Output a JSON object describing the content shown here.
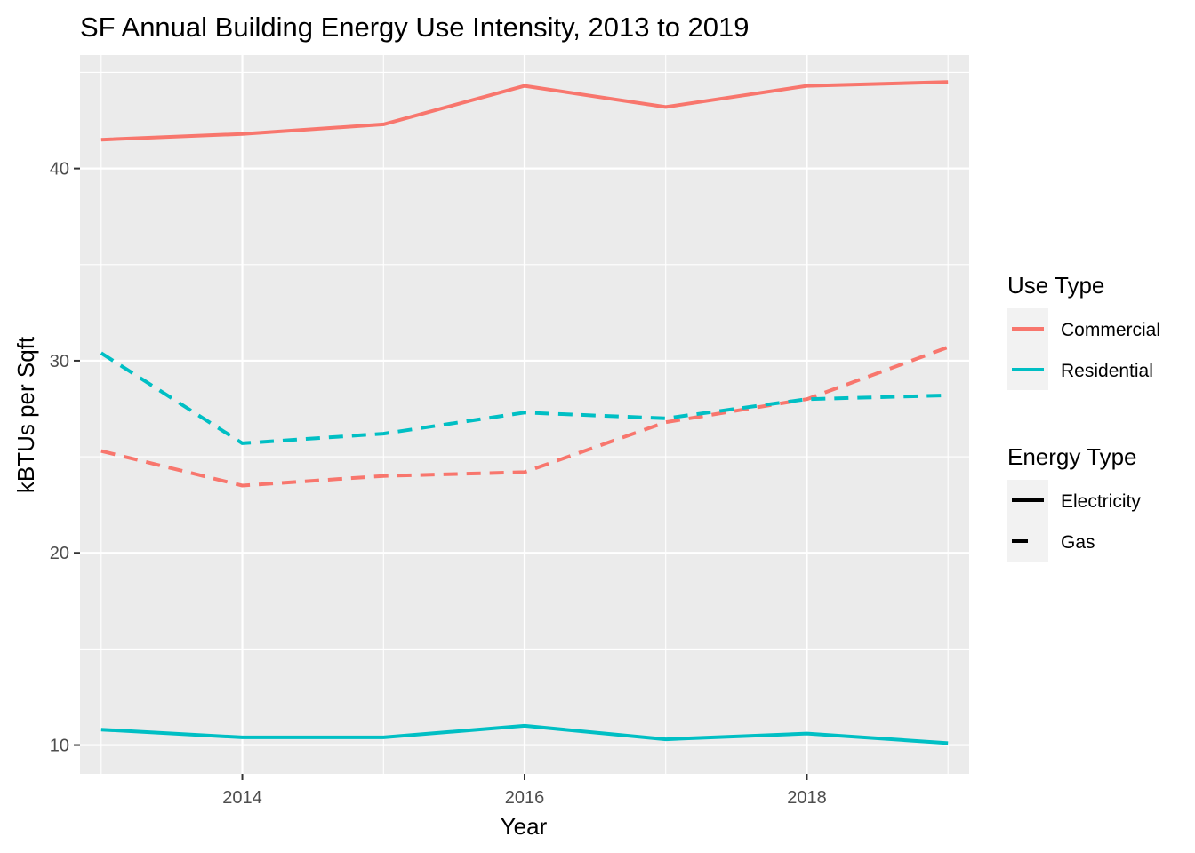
{
  "chart_data": {
    "type": "line",
    "title": "SF Annual Building Energy Use Intensity, 2013 to 2019",
    "xlabel": "Year",
    "ylabel": "kBTUs per Sqft",
    "xlim": [
      2012.85,
      2019.15
    ],
    "ylim": [
      8.5,
      45.9
    ],
    "x_ticks": [
      2014,
      2016,
      2018
    ],
    "y_ticks": [
      10,
      20,
      30,
      40
    ],
    "x_minor": [
      2013,
      2015,
      2017,
      2019
    ],
    "y_minor": [
      15,
      25,
      35,
      45
    ],
    "grid": true,
    "legend_position": "right",
    "x": [
      2013,
      2014,
      2015,
      2016,
      2017,
      2018,
      2019
    ],
    "colors": {
      "Commercial": "#F8766D",
      "Residential": "#00BFC4"
    },
    "series": [
      {
        "use_type": "Commercial",
        "energy_type": "Electricity",
        "values": [
          41.5,
          41.8,
          42.3,
          44.3,
          43.2,
          44.3,
          44.5
        ]
      },
      {
        "use_type": "Commercial",
        "energy_type": "Gas",
        "values": [
          25.3,
          23.5,
          24.0,
          24.2,
          26.8,
          28.0,
          30.7
        ]
      },
      {
        "use_type": "Residential",
        "energy_type": "Electricity",
        "values": [
          10.8,
          10.4,
          10.4,
          11.0,
          10.3,
          10.6,
          10.1
        ]
      },
      {
        "use_type": "Residential",
        "energy_type": "Gas",
        "values": [
          30.4,
          25.7,
          26.2,
          27.3,
          27.0,
          28.0,
          28.2
        ]
      }
    ],
    "legends": [
      {
        "title": "Use Type",
        "entries": [
          {
            "label": "Commercial",
            "key": "Commercial"
          },
          {
            "label": "Residential",
            "key": "Residential"
          }
        ]
      },
      {
        "title": "Energy Type",
        "entries": [
          {
            "label": "Electricity",
            "linetype": "solid"
          },
          {
            "label": "Gas",
            "linetype": "dashed"
          }
        ]
      }
    ]
  }
}
